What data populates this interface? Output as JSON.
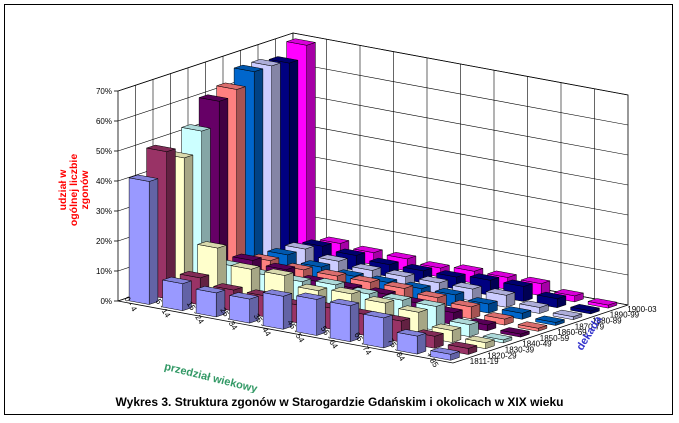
{
  "caption": "Wykres 3.  Struktura zgonów w Starogardzie Gdańskim i okolicach w XIX wieku",
  "chart_data": {
    "type": "bar3d",
    "title": "Wykres 3.  Struktura zgonów w Starogardzie Gdańskim i okolicach w XIX wieku",
    "xlabel": "przedział wiekowy",
    "ylabel": "udział w ogólnej liczbie zgonów",
    "zlabel": "dekada",
    "ylim": [
      0,
      70
    ],
    "yticks": [
      "0%",
      "10%",
      "20%",
      "30%",
      "40%",
      "50%",
      "60%",
      "70%"
    ],
    "categories": [
      "0 - 4",
      "5 - 14",
      "15 - 24",
      "25 - 34",
      "35 - 44",
      "45 - 54",
      "55 - 64",
      "65 - 74",
      "75 - 84",
      "+ 85"
    ],
    "series": [
      {
        "name": "1811-19",
        "color": "#9999ff",
        "values": [
          41,
          9,
          8,
          8,
          11,
          12,
          12,
          10,
          6,
          2
        ]
      },
      {
        "name": "1820-29",
        "color": "#993366",
        "values": [
          49,
          9,
          7,
          7,
          6,
          7,
          7,
          7,
          4,
          2
        ]
      },
      {
        "name": "1830-39",
        "color": "#ffffcc",
        "values": [
          45,
          17,
          12,
          12,
          9,
          10,
          9,
          8,
          4,
          2
        ]
      },
      {
        "name": "1840-49",
        "color": "#ccffff",
        "values": [
          52,
          9,
          8,
          8,
          9,
          8,
          8,
          8,
          4,
          1
        ]
      },
      {
        "name": "1850-59",
        "color": "#660066",
        "values": [
          60,
          9,
          8,
          6,
          6,
          6,
          5,
          4,
          2,
          1
        ]
      },
      {
        "name": "1860-69",
        "color": "#ff8080",
        "values": [
          62,
          7,
          6,
          6,
          6,
          6,
          5,
          4,
          2,
          1
        ]
      },
      {
        "name": "1870-79",
        "color": "#0066cc",
        "values": [
          66,
          7,
          5,
          4,
          4,
          4,
          4,
          3,
          2,
          1
        ]
      },
      {
        "name": "1880-89",
        "color": "#ccccff",
        "values": [
          66,
          7,
          5,
          4,
          4,
          4,
          4,
          4,
          2,
          1
        ]
      },
      {
        "name": "1890-99",
        "color": "#000080",
        "values": [
          65,
          6,
          5,
          4,
          4,
          4,
          5,
          5,
          3,
          1
        ]
      },
      {
        "name": "1900-03",
        "color": "#ff00ff",
        "values": [
          69,
          5,
          4,
          4,
          3,
          4,
          4,
          4,
          2,
          1
        ]
      }
    ],
    "grid": true,
    "legend": "none"
  }
}
